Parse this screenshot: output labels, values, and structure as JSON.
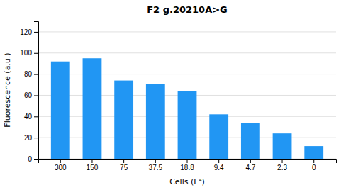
{
  "chart_data": {
    "type": "bar",
    "title": "F2 g.20210A>G",
    "xlabel": "Cells (E⁴)",
    "ylabel": "Fluorescence (a.u.)",
    "categories": [
      "300",
      "150",
      "75",
      "37.5",
      "18.8",
      "9.4",
      "4.7",
      "2.3",
      "0"
    ],
    "values": [
      92,
      95,
      74,
      71,
      64,
      42,
      34,
      24,
      12
    ],
    "color": "#2196F3",
    "ylim": [
      0,
      130
    ],
    "yticks": [
      0,
      20,
      40,
      60,
      80,
      100,
      120
    ],
    "grid": true
  }
}
